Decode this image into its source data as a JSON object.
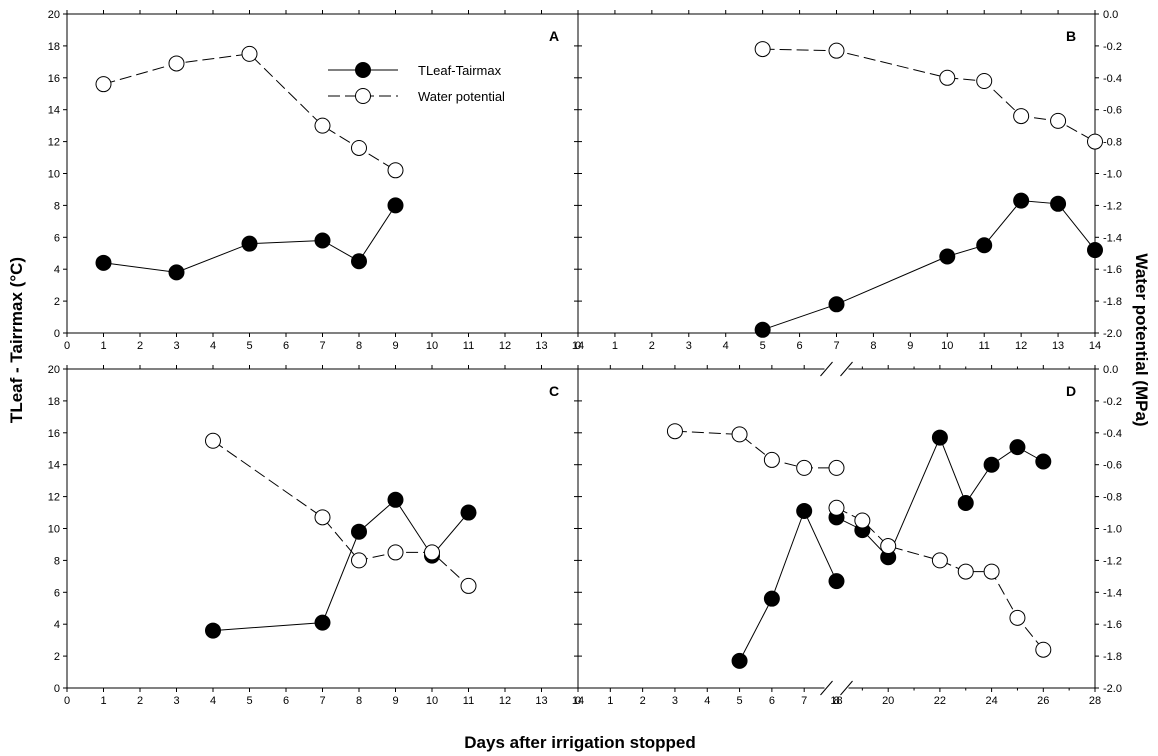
{
  "figure": {
    "ylabel_left": "TLeaf - Tairrmax (°C)",
    "ylabel_right": "Water potential  (MPa)",
    "xlabel": "Days after irrigation stopped",
    "legend": {
      "series1": "TLeaf-Tairmax",
      "series2": "Water potential"
    }
  },
  "chart_data": [
    {
      "type": "line",
      "panel": "A",
      "ylim": [
        0,
        20
      ],
      "y2lim": [
        -2.0,
        0.0
      ],
      "xlim": [
        0,
        14
      ],
      "x_ticks": [
        0,
        1,
        2,
        3,
        4,
        5,
        6,
        7,
        8,
        9,
        10,
        11,
        12,
        13,
        14
      ],
      "series": [
        {
          "name": "TLeaf-Tairmax",
          "axis": "left",
          "marker": "filled",
          "x": [
            1,
            3,
            5,
            7,
            8,
            9
          ],
          "y": [
            4.4,
            3.8,
            5.6,
            5.8,
            4.5,
            8.0
          ]
        },
        {
          "name": "Water potential",
          "axis": "right",
          "marker": "open",
          "x": [
            1,
            3,
            5,
            7,
            8,
            9
          ],
          "y": [
            -0.44,
            -0.31,
            -0.25,
            -0.7,
            -0.84,
            -0.98
          ]
        }
      ]
    },
    {
      "type": "line",
      "panel": "B",
      "ylim": [
        0,
        20
      ],
      "y2lim": [
        -2.0,
        0.0
      ],
      "xlim": [
        0,
        14
      ],
      "x_ticks": [
        0,
        1,
        2,
        3,
        4,
        5,
        6,
        7,
        8,
        9,
        10,
        11,
        12,
        13,
        14
      ],
      "series": [
        {
          "name": "TLeaf-Tairmax",
          "axis": "left",
          "marker": "filled",
          "x": [
            5,
            7,
            10,
            11,
            12,
            13,
            14
          ],
          "y": [
            0.2,
            1.8,
            4.8,
            5.5,
            8.3,
            8.1,
            5.2
          ]
        },
        {
          "name": "Water potential",
          "axis": "right",
          "marker": "open",
          "x": [
            5,
            7,
            10,
            11,
            12,
            13,
            14
          ],
          "y": [
            -0.22,
            -0.23,
            -0.4,
            -0.42,
            -0.64,
            -0.67,
            -0.8
          ]
        }
      ]
    },
    {
      "type": "line",
      "panel": "C",
      "ylim": [
        0,
        20
      ],
      "y2lim": [
        -2.0,
        0.0
      ],
      "xlim": [
        0,
        14
      ],
      "x_ticks": [
        0,
        1,
        2,
        3,
        4,
        5,
        6,
        7,
        8,
        9,
        10,
        11,
        12,
        13,
        14
      ],
      "series": [
        {
          "name": "TLeaf-Tairmax",
          "axis": "left",
          "marker": "filled",
          "x": [
            4,
            7,
            8,
            9,
            10,
            11
          ],
          "y": [
            3.6,
            4.1,
            9.8,
            11.8,
            8.3,
            11.0
          ]
        },
        {
          "name": "Water potential",
          "axis": "right",
          "marker": "open",
          "x": [
            4,
            7,
            8,
            9,
            10,
            11
          ],
          "y": [
            -0.45,
            -0.93,
            -1.2,
            -1.15,
            -1.15,
            -1.36
          ]
        }
      ]
    },
    {
      "type": "line",
      "panel": "D",
      "ylim": [
        0,
        20
      ],
      "y2lim": [
        -2.0,
        0.0
      ],
      "x_break": true,
      "x_segments": [
        {
          "range": [
            0,
            8
          ],
          "ticks": [
            0,
            1,
            2,
            3,
            4,
            5,
            6,
            7,
            8
          ]
        },
        {
          "range": [
            18,
            28
          ],
          "ticks": [
            18,
            20,
            22,
            24,
            26,
            28
          ]
        }
      ],
      "series": [
        {
          "name": "TLeaf-Tairmax",
          "axis": "left",
          "marker": "filled",
          "segment": 0,
          "x": [
            5,
            6,
            7,
            8
          ],
          "y": [
            1.7,
            5.6,
            11.1,
            6.7
          ]
        },
        {
          "name": "TLeaf-Tairmax",
          "axis": "left",
          "marker": "filled",
          "segment": 1,
          "x": [
            18,
            19,
            20,
            22,
            23,
            24,
            25,
            26
          ],
          "y": [
            10.7,
            9.9,
            8.2,
            15.7,
            11.6,
            14.0,
            15.1,
            14.2
          ]
        },
        {
          "name": "Water potential",
          "axis": "right",
          "marker": "open",
          "segment": 0,
          "x": [
            3,
            5,
            6,
            7,
            8
          ],
          "y": [
            -0.39,
            -0.41,
            -0.57,
            -0.62,
            -0.62
          ]
        },
        {
          "name": "Water potential",
          "axis": "right",
          "marker": "open",
          "segment": 1,
          "x": [
            18,
            19,
            20,
            22,
            23,
            24,
            25,
            26
          ],
          "y": [
            -0.87,
            -0.95,
            -1.11,
            -1.2,
            -1.27,
            -1.27,
            -1.56,
            -1.76
          ]
        }
      ]
    }
  ]
}
